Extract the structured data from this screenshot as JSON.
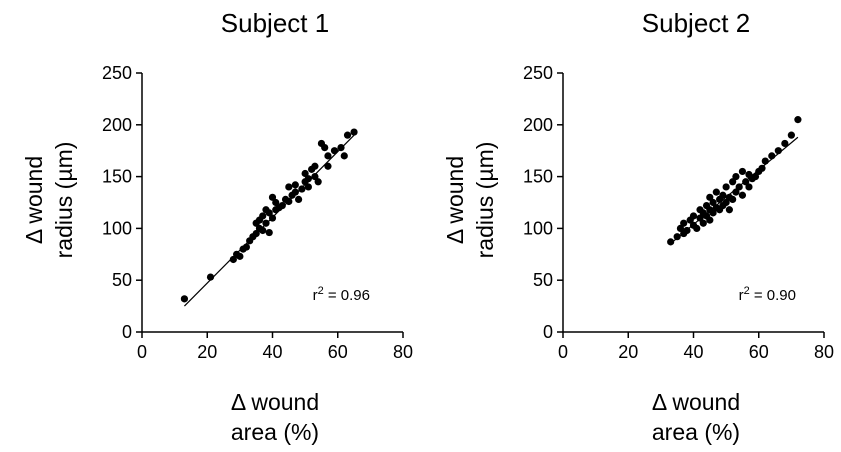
{
  "chart_data": [
    {
      "type": "scatter",
      "title": "Subject 1",
      "xlabel_line1": "Δ wound",
      "xlabel_line2": "area (%)",
      "ylabel_line1": "Δ wound",
      "ylabel_line2": "radius (µm)",
      "xlim": [
        0,
        80
      ],
      "ylim": [
        0,
        250
      ],
      "xticks": [
        "0",
        "20",
        "40",
        "60",
        "80"
      ],
      "yticks": [
        "0",
        "50",
        "100",
        "150",
        "200",
        "250"
      ],
      "annotation": {
        "prefix": "r",
        "sup": "2",
        "suffix": " = 0.96"
      },
      "fit_line": {
        "x": [
          13,
          65
        ],
        "y": [
          25,
          190
        ]
      },
      "points": [
        {
          "x": 13,
          "y": 32
        },
        {
          "x": 21,
          "y": 53
        },
        {
          "x": 28,
          "y": 70
        },
        {
          "x": 29,
          "y": 75
        },
        {
          "x": 30,
          "y": 73
        },
        {
          "x": 31,
          "y": 80
        },
        {
          "x": 32,
          "y": 82
        },
        {
          "x": 33,
          "y": 88
        },
        {
          "x": 34,
          "y": 92
        },
        {
          "x": 35,
          "y": 95
        },
        {
          "x": 35,
          "y": 105
        },
        {
          "x": 36,
          "y": 100
        },
        {
          "x": 36,
          "y": 108
        },
        {
          "x": 37,
          "y": 98
        },
        {
          "x": 37,
          "y": 112
        },
        {
          "x": 38,
          "y": 105
        },
        {
          "x": 38,
          "y": 118
        },
        {
          "x": 39,
          "y": 96
        },
        {
          "x": 39,
          "y": 115
        },
        {
          "x": 40,
          "y": 110
        },
        {
          "x": 40,
          "y": 130
        },
        {
          "x": 41,
          "y": 118
        },
        {
          "x": 41,
          "y": 125
        },
        {
          "x": 42,
          "y": 120
        },
        {
          "x": 43,
          "y": 122
        },
        {
          "x": 44,
          "y": 128
        },
        {
          "x": 45,
          "y": 126
        },
        {
          "x": 45,
          "y": 140
        },
        {
          "x": 46,
          "y": 132
        },
        {
          "x": 47,
          "y": 135
        },
        {
          "x": 47,
          "y": 142
        },
        {
          "x": 48,
          "y": 128
        },
        {
          "x": 49,
          "y": 138
        },
        {
          "x": 50,
          "y": 145
        },
        {
          "x": 50,
          "y": 153
        },
        {
          "x": 51,
          "y": 148
        },
        {
          "x": 51,
          "y": 140
        },
        {
          "x": 52,
          "y": 157
        },
        {
          "x": 53,
          "y": 150
        },
        {
          "x": 53,
          "y": 160
        },
        {
          "x": 54,
          "y": 145
        },
        {
          "x": 55,
          "y": 182
        },
        {
          "x": 56,
          "y": 178
        },
        {
          "x": 57,
          "y": 170
        },
        {
          "x": 57,
          "y": 160
        },
        {
          "x": 59,
          "y": 175
        },
        {
          "x": 61,
          "y": 178
        },
        {
          "x": 62,
          "y": 170
        },
        {
          "x": 63,
          "y": 190
        },
        {
          "x": 65,
          "y": 193
        }
      ]
    },
    {
      "type": "scatter",
      "title": "Subject 2",
      "xlabel_line1": "Δ wound",
      "xlabel_line2": "area (%)",
      "ylabel_line1": "Δ wound",
      "ylabel_line2": "radius (µm)",
      "xlim": [
        0,
        80
      ],
      "ylim": [
        0,
        250
      ],
      "xticks": [
        "0",
        "20",
        "40",
        "60",
        "80"
      ],
      "yticks": [
        "0",
        "50",
        "100",
        "150",
        "200",
        "250"
      ],
      "annotation": {
        "prefix": "r",
        "sup": "2",
        "suffix": " = 0.90"
      },
      "fit_line": {
        "x": [
          34,
          72
        ],
        "y": [
          88,
          188
        ]
      },
      "points": [
        {
          "x": 33,
          "y": 87
        },
        {
          "x": 35,
          "y": 92
        },
        {
          "x": 36,
          "y": 100
        },
        {
          "x": 37,
          "y": 95
        },
        {
          "x": 37,
          "y": 105
        },
        {
          "x": 38,
          "y": 98
        },
        {
          "x": 39,
          "y": 108
        },
        {
          "x": 40,
          "y": 103
        },
        {
          "x": 40,
          "y": 112
        },
        {
          "x": 41,
          "y": 100
        },
        {
          "x": 42,
          "y": 110
        },
        {
          "x": 42,
          "y": 118
        },
        {
          "x": 43,
          "y": 105
        },
        {
          "x": 43,
          "y": 115
        },
        {
          "x": 44,
          "y": 112
        },
        {
          "x": 44,
          "y": 122
        },
        {
          "x": 45,
          "y": 108
        },
        {
          "x": 45,
          "y": 118
        },
        {
          "x": 45,
          "y": 130
        },
        {
          "x": 46,
          "y": 115
        },
        {
          "x": 46,
          "y": 125
        },
        {
          "x": 47,
          "y": 120
        },
        {
          "x": 47,
          "y": 135
        },
        {
          "x": 48,
          "y": 118
        },
        {
          "x": 48,
          "y": 128
        },
        {
          "x": 49,
          "y": 122
        },
        {
          "x": 49,
          "y": 132
        },
        {
          "x": 50,
          "y": 125
        },
        {
          "x": 50,
          "y": 140
        },
        {
          "x": 51,
          "y": 118
        },
        {
          "x": 51,
          "y": 130
        },
        {
          "x": 52,
          "y": 128
        },
        {
          "x": 52,
          "y": 145
        },
        {
          "x": 53,
          "y": 135
        },
        {
          "x": 53,
          "y": 150
        },
        {
          "x": 54,
          "y": 140
        },
        {
          "x": 55,
          "y": 155
        },
        {
          "x": 55,
          "y": 132
        },
        {
          "x": 56,
          "y": 145
        },
        {
          "x": 57,
          "y": 140
        },
        {
          "x": 57,
          "y": 152
        },
        {
          "x": 58,
          "y": 148
        },
        {
          "x": 59,
          "y": 150
        },
        {
          "x": 60,
          "y": 155
        },
        {
          "x": 61,
          "y": 158
        },
        {
          "x": 62,
          "y": 165
        },
        {
          "x": 64,
          "y": 170
        },
        {
          "x": 66,
          "y": 175
        },
        {
          "x": 68,
          "y": 182
        },
        {
          "x": 70,
          "y": 190
        },
        {
          "x": 72,
          "y": 205
        }
      ]
    }
  ]
}
